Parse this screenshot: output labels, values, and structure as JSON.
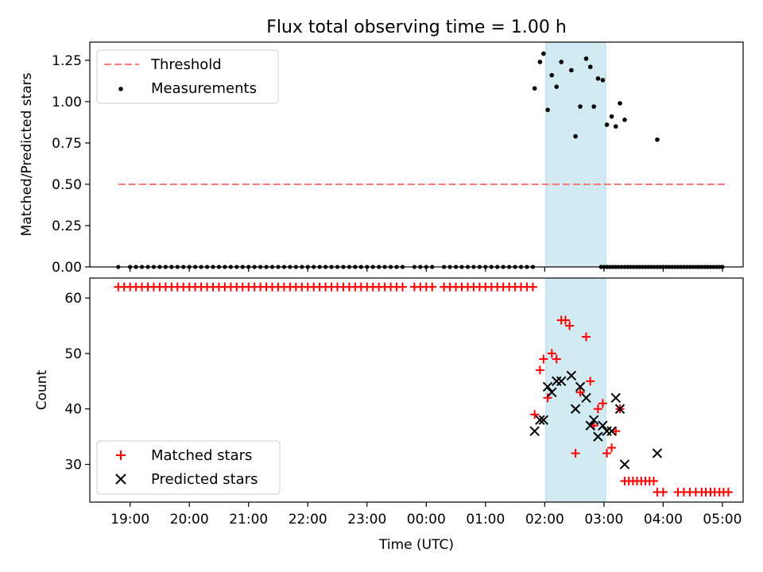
{
  "title": "Flux total observing time = 1.00 h",
  "colors": {
    "threshold": "#ff7777",
    "measurement": "#000000",
    "matched": "#ff0000",
    "predicted": "#000000",
    "band": "#add8e6"
  },
  "chart_data": [
    {
      "type": "scatter",
      "name": "top-panel",
      "ylabel": "Matched/Predicted stars",
      "xlabel": "",
      "ylim": [
        0,
        1.36
      ],
      "yticks": [
        0.0,
        0.25,
        0.5,
        0.75,
        1.0,
        1.25
      ],
      "ytick_labels": [
        "0.00",
        "0.25",
        "0.50",
        "0.75",
        "1.00",
        "1.25"
      ],
      "legend": {
        "position": "top-left",
        "threshold_label": "Threshold",
        "measurements_label": "Measurements"
      },
      "threshold": {
        "value": 0.5,
        "x_start": -0.2,
        "x_end": 10.1
      },
      "measurements_zero": [
        -0.2,
        0.0,
        0.1,
        0.2,
        0.3,
        0.4,
        0.5,
        0.6,
        0.7,
        0.8,
        0.9,
        1.0,
        1.1,
        1.2,
        1.3,
        1.4,
        1.5,
        1.6,
        1.7,
        1.8,
        1.9,
        2.0,
        2.1,
        2.2,
        2.3,
        2.4,
        2.5,
        2.6,
        2.7,
        2.8,
        2.9,
        3.0,
        3.1,
        3.2,
        3.3,
        3.4,
        3.5,
        3.6,
        3.7,
        3.8,
        3.9,
        4.0,
        4.1,
        4.2,
        4.3,
        4.4,
        4.5,
        4.6,
        4.8,
        4.9,
        5.0,
        5.1,
        5.3,
        5.4,
        5.5,
        5.6,
        5.7,
        5.8,
        5.9,
        6.0,
        6.1,
        6.2,
        6.3,
        6.4,
        6.5,
        6.6,
        6.7,
        6.8,
        7.95,
        8.0,
        8.05,
        8.1,
        8.15,
        8.2,
        8.25,
        8.3,
        8.35,
        8.4,
        8.45,
        8.5,
        8.55,
        8.6,
        8.65,
        8.7,
        8.75,
        8.8,
        8.85,
        8.9,
        8.95,
        9.0,
        9.05,
        9.1,
        9.15,
        9.2,
        9.25,
        9.3,
        9.35,
        9.4,
        9.45,
        9.5,
        9.55,
        9.6,
        9.65,
        9.7,
        9.75,
        9.8,
        9.85,
        9.9,
        9.95,
        10.0
      ],
      "measurements": [
        {
          "x": 6.83,
          "y": 1.08
        },
        {
          "x": 6.92,
          "y": 1.24
        },
        {
          "x": 6.98,
          "y": 1.29
        },
        {
          "x": 7.05,
          "y": 0.95
        },
        {
          "x": 7.12,
          "y": 1.16
        },
        {
          "x": 7.2,
          "y": 1.09
        },
        {
          "x": 7.28,
          "y": 1.24
        },
        {
          "x": 7.45,
          "y": 1.19
        },
        {
          "x": 7.52,
          "y": 0.79
        },
        {
          "x": 7.6,
          "y": 0.97
        },
        {
          "x": 7.7,
          "y": 1.26
        },
        {
          "x": 7.77,
          "y": 1.21
        },
        {
          "x": 7.83,
          "y": 0.97
        },
        {
          "x": 7.9,
          "y": 1.14
        },
        {
          "x": 7.98,
          "y": 1.13
        },
        {
          "x": 8.05,
          "y": 0.86
        },
        {
          "x": 8.13,
          "y": 0.91
        },
        {
          "x": 8.2,
          "y": 0.85
        },
        {
          "x": 8.27,
          "y": 0.99
        },
        {
          "x": 8.35,
          "y": 0.89
        },
        {
          "x": 8.9,
          "y": 0.77
        }
      ]
    },
    {
      "type": "scatter",
      "name": "bottom-panel",
      "ylabel": "Count",
      "xlabel": "Time (UTC)",
      "ylim": [
        23.2,
        63.6
      ],
      "yticks": [
        30,
        40,
        50,
        60
      ],
      "ytick_labels": [
        "30",
        "40",
        "50",
        "60"
      ],
      "legend": {
        "position": "bottom-left",
        "matched_label": "Matched stars",
        "predicted_label": "Predicted stars"
      },
      "matched_flat": {
        "y": 62,
        "x": [
          -0.2,
          -0.1,
          0.0,
          0.1,
          0.2,
          0.3,
          0.4,
          0.5,
          0.6,
          0.7,
          0.8,
          0.9,
          1.0,
          1.1,
          1.2,
          1.3,
          1.4,
          1.5,
          1.6,
          1.7,
          1.8,
          1.9,
          2.0,
          2.1,
          2.2,
          2.3,
          2.4,
          2.5,
          2.6,
          2.7,
          2.8,
          2.9,
          3.0,
          3.1,
          3.2,
          3.3,
          3.4,
          3.5,
          3.6,
          3.7,
          3.8,
          3.9,
          4.0,
          4.1,
          4.2,
          4.3,
          4.4,
          4.5,
          4.6,
          4.8,
          4.9,
          5.0,
          5.1,
          5.3,
          5.4,
          5.5,
          5.6,
          5.7,
          5.8,
          5.9,
          6.0,
          6.1,
          6.2,
          6.3,
          6.4,
          6.5,
          6.6,
          6.7,
          6.8
        ]
      },
      "matched": [
        {
          "x": 6.83,
          "y": 39
        },
        {
          "x": 6.92,
          "y": 47
        },
        {
          "x": 6.98,
          "y": 49
        },
        {
          "x": 7.05,
          "y": 42
        },
        {
          "x": 7.12,
          "y": 50
        },
        {
          "x": 7.2,
          "y": 49
        },
        {
          "x": 7.28,
          "y": 56
        },
        {
          "x": 7.35,
          "y": 56
        },
        {
          "x": 7.42,
          "y": 55
        },
        {
          "x": 7.52,
          "y": 32
        },
        {
          "x": 7.6,
          "y": 43
        },
        {
          "x": 7.7,
          "y": 53
        },
        {
          "x": 7.77,
          "y": 45
        },
        {
          "x": 7.83,
          "y": 37
        },
        {
          "x": 7.9,
          "y": 40
        },
        {
          "x": 7.98,
          "y": 41
        },
        {
          "x": 8.05,
          "y": 32
        },
        {
          "x": 8.13,
          "y": 33
        },
        {
          "x": 8.2,
          "y": 36
        },
        {
          "x": 8.27,
          "y": 40
        }
      ],
      "matched_tail": {
        "y": 27,
        "x": [
          8.35,
          8.42,
          8.49,
          8.56,
          8.63,
          8.7,
          8.77,
          8.84
        ]
      },
      "matched_tail2": {
        "y": 25,
        "x": [
          8.9,
          9.0,
          9.25,
          9.35,
          9.45,
          9.55,
          9.65,
          9.72,
          9.8,
          9.87,
          9.95,
          10.02,
          10.1
        ]
      },
      "predicted": [
        {
          "x": 6.83,
          "y": 36
        },
        {
          "x": 6.92,
          "y": 38
        },
        {
          "x": 6.98,
          "y": 38
        },
        {
          "x": 7.05,
          "y": 44
        },
        {
          "x": 7.12,
          "y": 43
        },
        {
          "x": 7.2,
          "y": 45
        },
        {
          "x": 7.28,
          "y": 45
        },
        {
          "x": 7.45,
          "y": 46
        },
        {
          "x": 7.52,
          "y": 40
        },
        {
          "x": 7.6,
          "y": 44
        },
        {
          "x": 7.7,
          "y": 42
        },
        {
          "x": 7.77,
          "y": 37
        },
        {
          "x": 7.83,
          "y": 38
        },
        {
          "x": 7.9,
          "y": 35
        },
        {
          "x": 7.98,
          "y": 37
        },
        {
          "x": 8.05,
          "y": 36
        },
        {
          "x": 8.13,
          "y": 36
        },
        {
          "x": 8.2,
          "y": 42
        },
        {
          "x": 8.27,
          "y": 40
        },
        {
          "x": 8.35,
          "y": 30
        },
        {
          "x": 8.9,
          "y": 32
        }
      ]
    }
  ],
  "x_axis": {
    "xlim": [
      -0.68,
      10.35
    ],
    "ticks": [
      0,
      1,
      2,
      3,
      4,
      5,
      6,
      7,
      8,
      9,
      10
    ],
    "tick_labels": [
      "19:00",
      "20:00",
      "21:00",
      "22:00",
      "23:00",
      "00:00",
      "01:00",
      "02:00",
      "03:00",
      "04:00",
      "05:00"
    ],
    "label": "Time (UTC)"
  },
  "shaded_band": {
    "x_start": 7.02,
    "x_end": 8.03
  }
}
